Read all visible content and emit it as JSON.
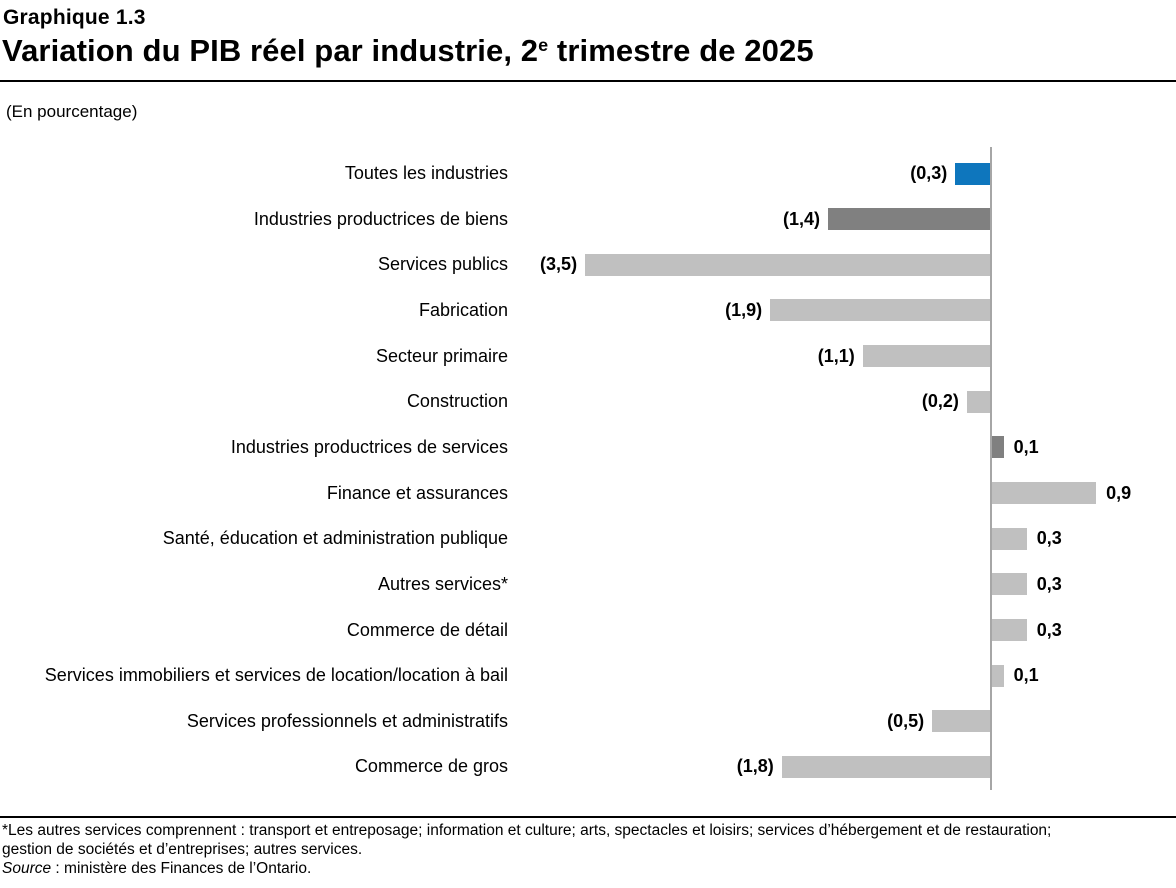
{
  "header": {
    "chart_number": "Graphique 1.3",
    "title_prefix": "Variation du PIB réel par industrie, 2",
    "title_sup": "e",
    "title_suffix": " trimestre de 2025"
  },
  "subtitle": "(En pourcentage)",
  "chart_data": {
    "type": "bar",
    "orientation": "horizontal",
    "title": "Variation du PIB réel par industrie, 2e trimestre de 2025",
    "unit_label": "(En pourcentage)",
    "negative_style": "parentheses",
    "xlim": [
      -4.2,
      1.6
    ],
    "grid": false,
    "legend": false,
    "categories": [
      "Toutes les industries",
      "Industries productrices de biens",
      "Services publics",
      "Fabrication",
      "Secteur primaire",
      "Construction",
      "Industries productrices de services",
      "Finance et assurances",
      "Santé, éducation et administration publique",
      "Autres services*",
      "Commerce de détail",
      "Services immobiliers et services de location/location à bail",
      "Services professionnels et administratifs",
      "Commerce de gros"
    ],
    "values": [
      -0.3,
      -1.4,
      -3.5,
      -1.9,
      -1.1,
      -0.2,
      0.1,
      0.9,
      0.3,
      0.3,
      0.3,
      0.1,
      -0.5,
      -1.8
    ],
    "value_labels": [
      "(0,3)",
      "(1,4)",
      "(3,5)",
      "(1,9)",
      "(1,1)",
      "(0,2)",
      "0,1",
      "0,9",
      "0,3",
      "0,3",
      "0,3",
      "0,1",
      "(0,5)",
      "(1,8)"
    ],
    "bar_color_keys": [
      "all_industries",
      "aggregate",
      "industry",
      "industry",
      "industry",
      "industry",
      "aggregate",
      "industry",
      "industry",
      "industry",
      "industry",
      "industry",
      "industry",
      "industry"
    ],
    "colors": {
      "all_industries": "#0e76bd",
      "aggregate": "#808080",
      "industry": "#c0c0c0",
      "axis_line": "#a6a6a6"
    }
  },
  "footnotes": {
    "line1": "*Les autres services comprennent : transport et entreposage; information et culture; arts, spectacles et loisirs; services d’hébergement et de restauration;",
    "line2": "gestion de sociétés et d’entreprises; autres services.",
    "source_label": "Source",
    "source_text": " : ministère des Finances de l’Ontario."
  }
}
